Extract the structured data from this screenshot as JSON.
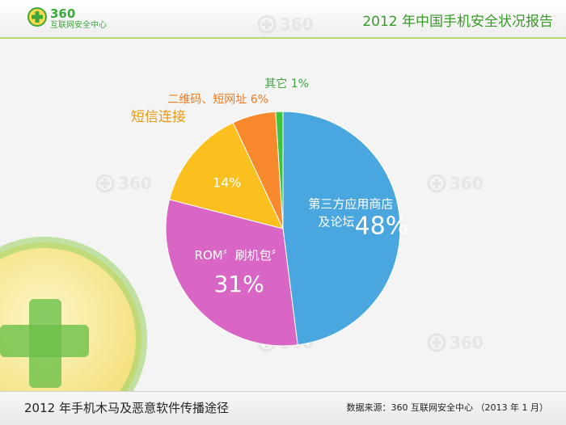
{
  "header": {
    "logo_number": "360",
    "logo_subtitle": "互联网安全中心",
    "report_title": "2012 年中国手机安全状况报告"
  },
  "watermark": "360",
  "chart_data": {
    "type": "pie",
    "slices": [
      {
        "label": "第三方应用商店及论坛",
        "label_lines": [
          "第三方应用商店",
          "及论坛"
        ],
        "value": 48,
        "value_text": "48%",
        "color": "#4aa6df"
      },
      {
        "label": "ROM“刷机包”",
        "label_lines": [
          "ROM〞刷机包〞"
        ],
        "value": 31,
        "value_text": "31%",
        "color": "#d966c4"
      },
      {
        "label": "短信连接",
        "label_lines": [
          "短信连接"
        ],
        "value": 14,
        "value_text": "14%",
        "color": "#fbbf1e"
      },
      {
        "label": "二维码、短网址",
        "label_lines": [
          "二维码、短网址 6%"
        ],
        "value": 6,
        "value_text": "",
        "color": "#f7882c"
      },
      {
        "label": "其它",
        "label_lines": [
          "其它 1%"
        ],
        "value": 1,
        "value_text": "",
        "color": "#3fc23c"
      }
    ],
    "label_colors": {
      "outside_orange": "#f07a1e",
      "outside_gold": "#e69a10",
      "outside_green": "#3aa83a",
      "inside": "#ffffff"
    }
  },
  "footer": {
    "title": "2012 年手机木马及恶意软件传播途径",
    "source": "数据来源：360 互联网安全中心 （2013 年 1 月）"
  },
  "colors": {
    "brand_green": "#3aa83a",
    "header_line": "#b7d86b"
  }
}
